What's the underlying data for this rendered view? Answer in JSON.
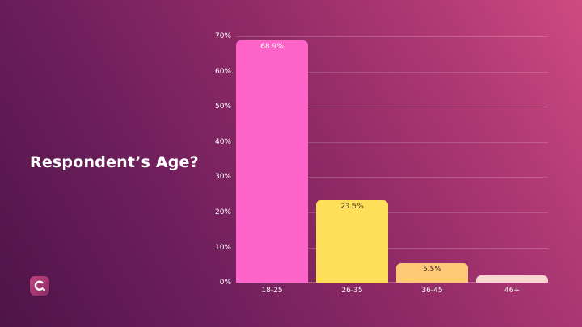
{
  "title": "Respondent’s Age?",
  "logo": {
    "icon": "c-logo-icon"
  },
  "colors": {
    "bar_18_25": "#ff64c8",
    "bar_26_35": "#ffde59",
    "bar_36_45": "#ffc978",
    "bar_46_plus": "#f7d6d0",
    "label_dark": "#3a2a1a",
    "label_light": "#ffffff"
  },
  "chart_data": {
    "type": "bar",
    "title": "Respondent’s Age?",
    "xlabel": "",
    "ylabel": "",
    "categories": [
      "18-25",
      "26-35",
      "36-45",
      "46+"
    ],
    "values": [
      68.9,
      23.5,
      5.5,
      2.1
    ],
    "data_labels": [
      "68.9%",
      "23.5%",
      "5.5%",
      ""
    ],
    "ylim": [
      0,
      70
    ],
    "yticks": [
      "0%",
      "10%",
      "20%",
      "30%",
      "40%",
      "50%",
      "60%",
      "70%"
    ],
    "grid": true,
    "legend": "none"
  }
}
